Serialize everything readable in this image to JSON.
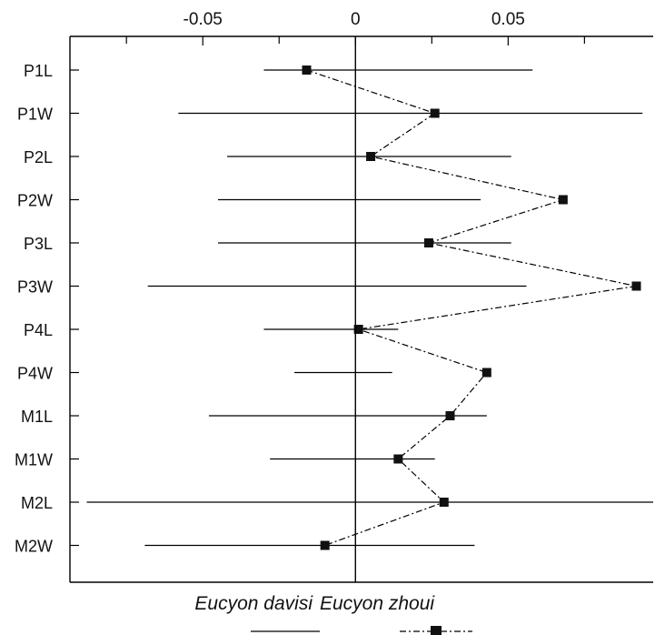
{
  "chart_data": {
    "type": "scatter",
    "title": "",
    "xlabel": "",
    "ylabel": "",
    "orientation": "horizontal",
    "x_ticks": [
      "-0.05",
      "0",
      "0.05"
    ],
    "x_tick_values": [
      -0.05,
      0,
      0.05
    ],
    "xlim": [
      -0.0935,
      0.0975
    ],
    "categories": [
      "P1L",
      "P1W",
      "P2L",
      "P2W",
      "P3L",
      "P3W",
      "P4L",
      "P4W",
      "M1L",
      "M1W",
      "M2L",
      "M2W"
    ],
    "series": [
      {
        "name": "Eucyon davisi",
        "marker": "none",
        "line_style": "solid",
        "ranges": [
          [
            -0.03,
            0.058
          ],
          [
            -0.058,
            0.094
          ],
          [
            -0.042,
            0.051
          ],
          [
            -0.045,
            0.041
          ],
          [
            -0.045,
            0.051
          ],
          [
            -0.068,
            0.056
          ],
          [
            -0.03,
            0.014
          ],
          [
            -0.02,
            0.012
          ],
          [
            -0.048,
            0.043
          ],
          [
            -0.028,
            0.026
          ],
          [
            -0.088,
            0.098
          ],
          [
            -0.069,
            0.039
          ]
        ]
      },
      {
        "name": "Eucyon zhoui",
        "marker": "square",
        "line_style": "dash-dot",
        "values": [
          -0.016,
          0.026,
          0.005,
          0.068,
          0.024,
          0.092,
          0.001,
          0.043,
          0.031,
          0.014,
          0.029,
          -0.01
        ]
      }
    ],
    "zero_line": true,
    "grid": false,
    "legend": "bottom"
  },
  "colors": {
    "line": "#000000",
    "marker": "#111111",
    "background": "#ffffff"
  }
}
